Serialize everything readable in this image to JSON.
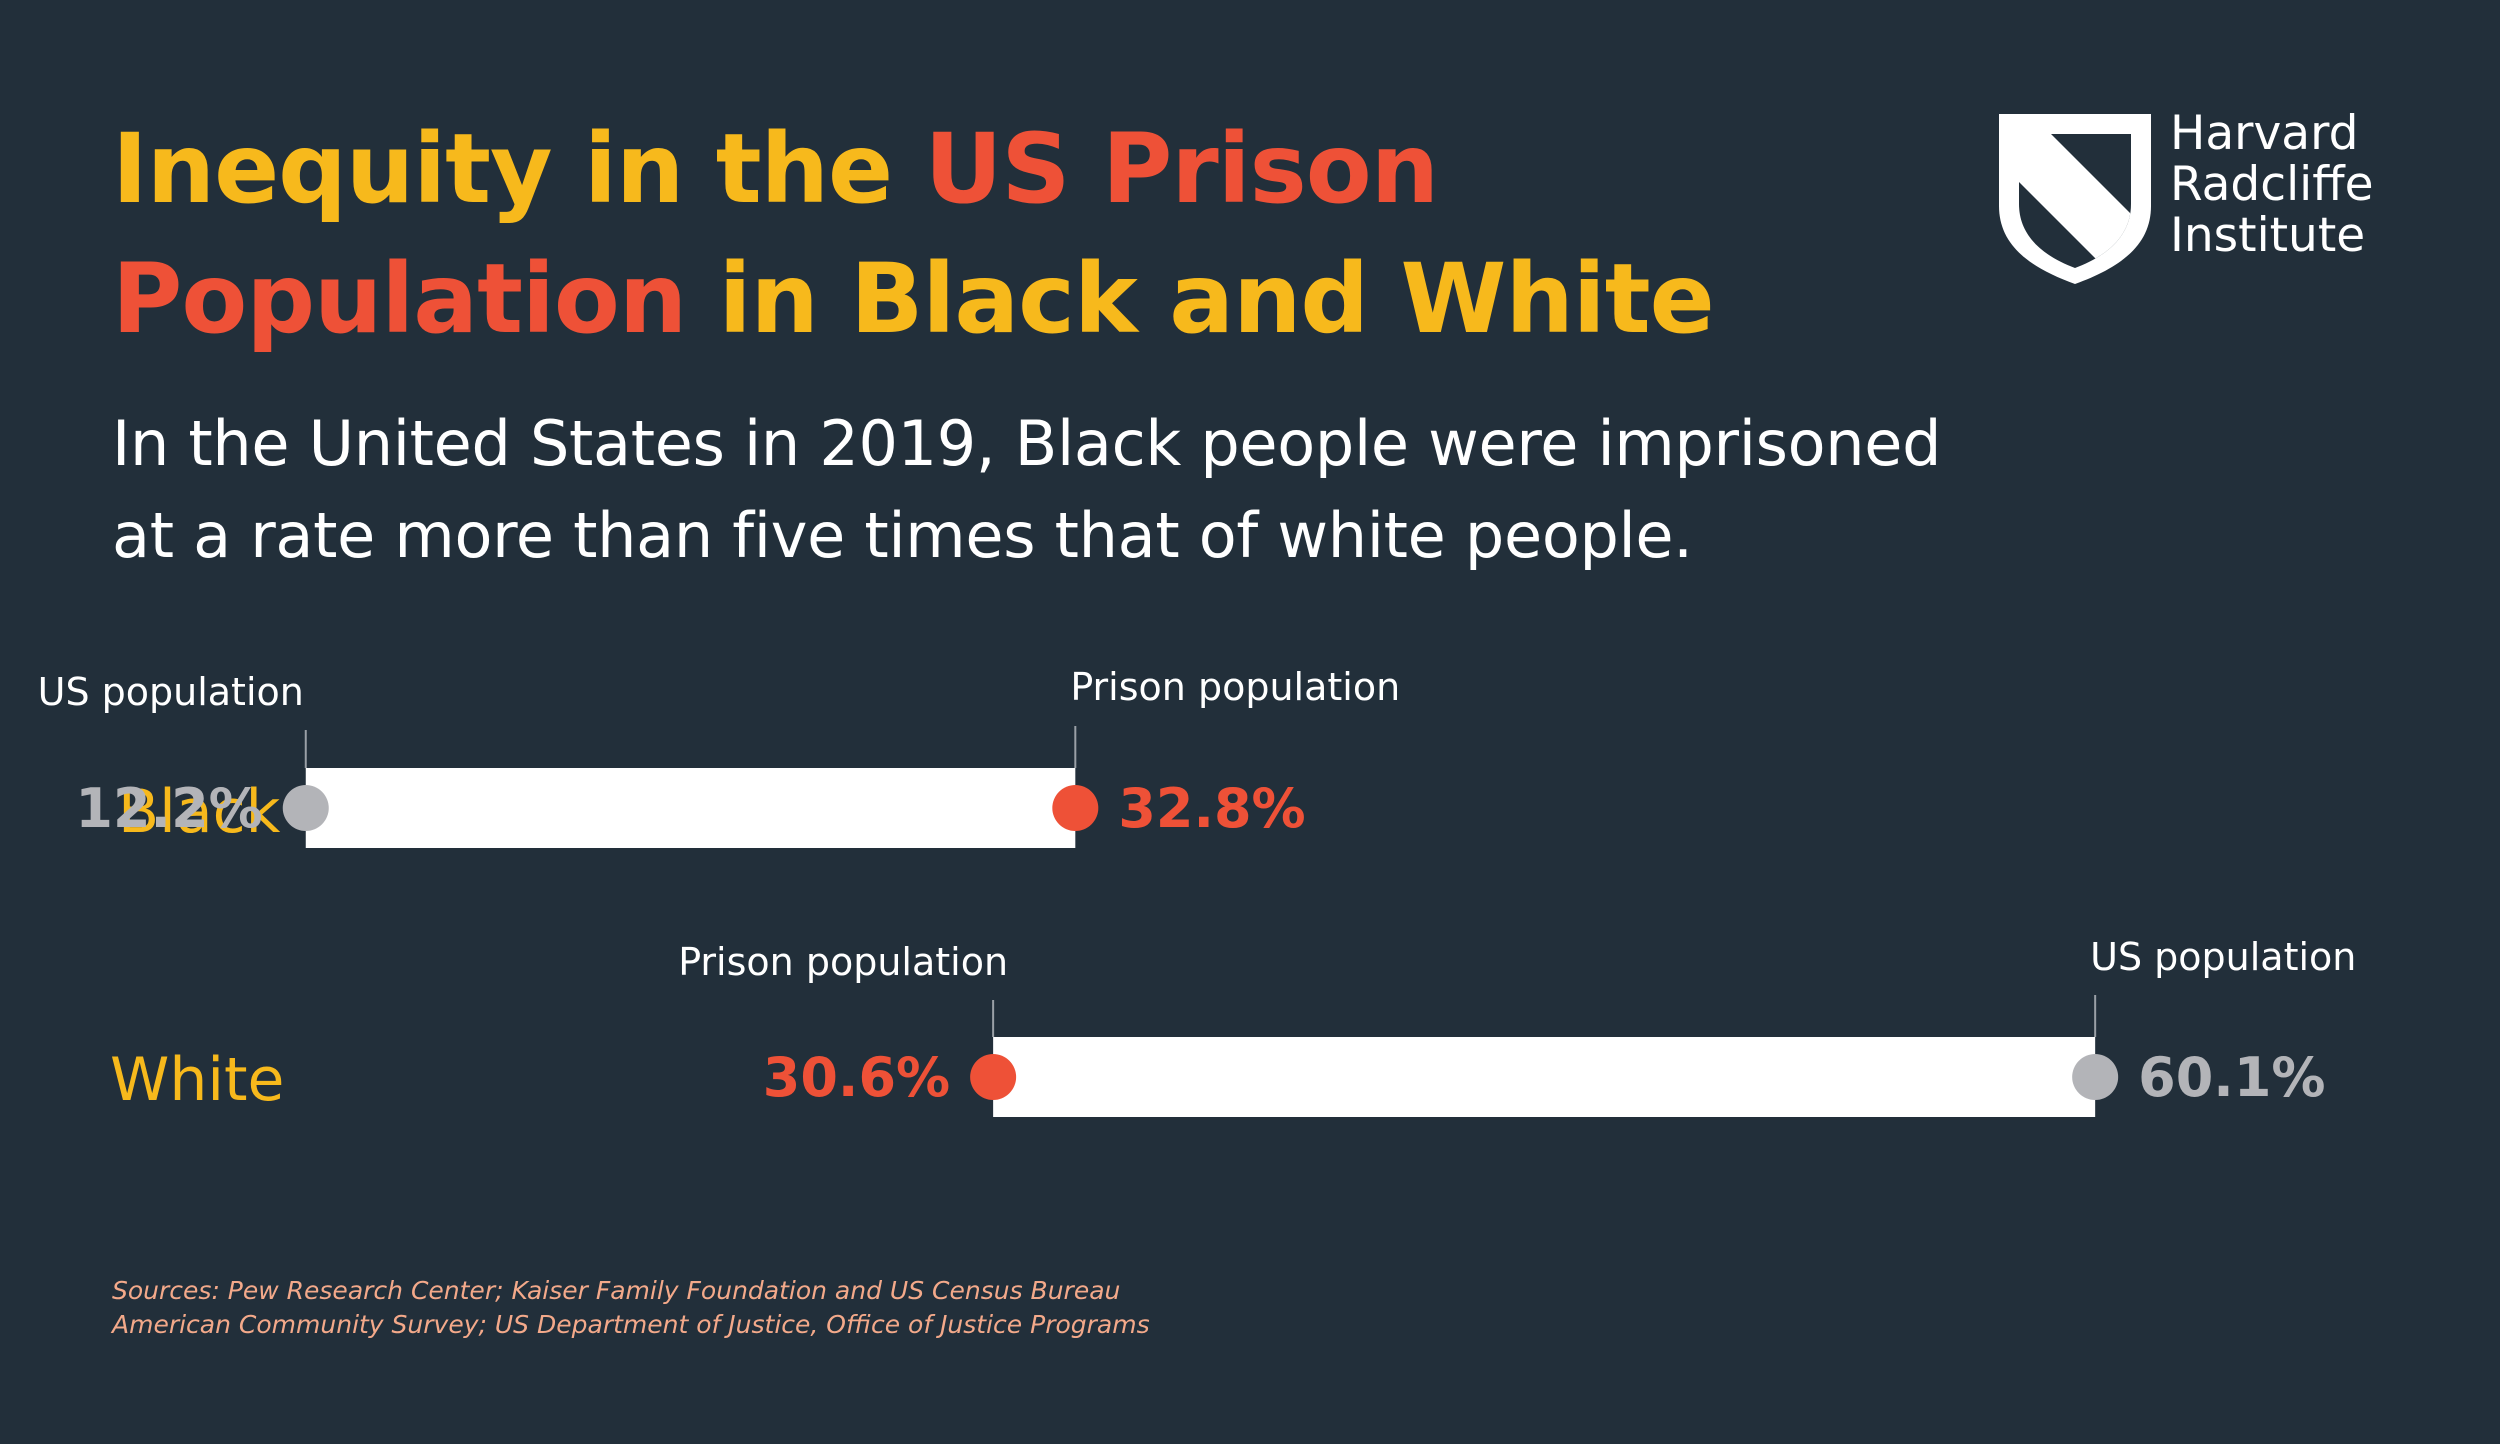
{
  "title": {
    "part1": "Inequity in the ",
    "part2": "US Prison",
    "part3": "Population",
    "part4": " in Black and White"
  },
  "subtitle": {
    "line1": "In the United States in 2019, Black people were imprisoned",
    "line2": "at a rate more than five times that of white people."
  },
  "logo": {
    "line1": "Harvard",
    "line2": "Radcliffe",
    "line3": "Institute"
  },
  "colors": {
    "background": "#222f3a",
    "title_yellow": "#f7b91c",
    "title_red": "#ee5137",
    "prison_dot": "#ee5137",
    "population_dot": "#b3b4b8",
    "bar": "#ffffff",
    "sources": "#f3a98a"
  },
  "chart_data": {
    "type": "dumbbell",
    "title": "Inequity in the US Prison Population in Black and White",
    "unit": "%",
    "xlim": [
      0,
      70
    ],
    "series": [
      {
        "name": "US population",
        "color": "#b3b4b8"
      },
      {
        "name": "Prison population",
        "color": "#ee5137"
      }
    ],
    "rows": [
      {
        "category": "Black",
        "us_population": 12.2,
        "prison_population": 32.8,
        "us_population_label": "12.2%",
        "prison_population_label": "32.8%",
        "us_population_annotation": "US population",
        "prison_population_annotation": "Prison population"
      },
      {
        "category": "White",
        "us_population": 60.1,
        "prison_population": 30.6,
        "us_population_label": "60.1%",
        "prison_population_label": "30.6%",
        "us_population_annotation": "US population",
        "prison_population_annotation": "Prison population"
      }
    ]
  },
  "sources": {
    "line1": "Sources: Pew Research Center; Kaiser Family Foundation and US Census Bureau",
    "line2": "American Community Survey; US Department of Justice, Office of Justice Programs"
  }
}
